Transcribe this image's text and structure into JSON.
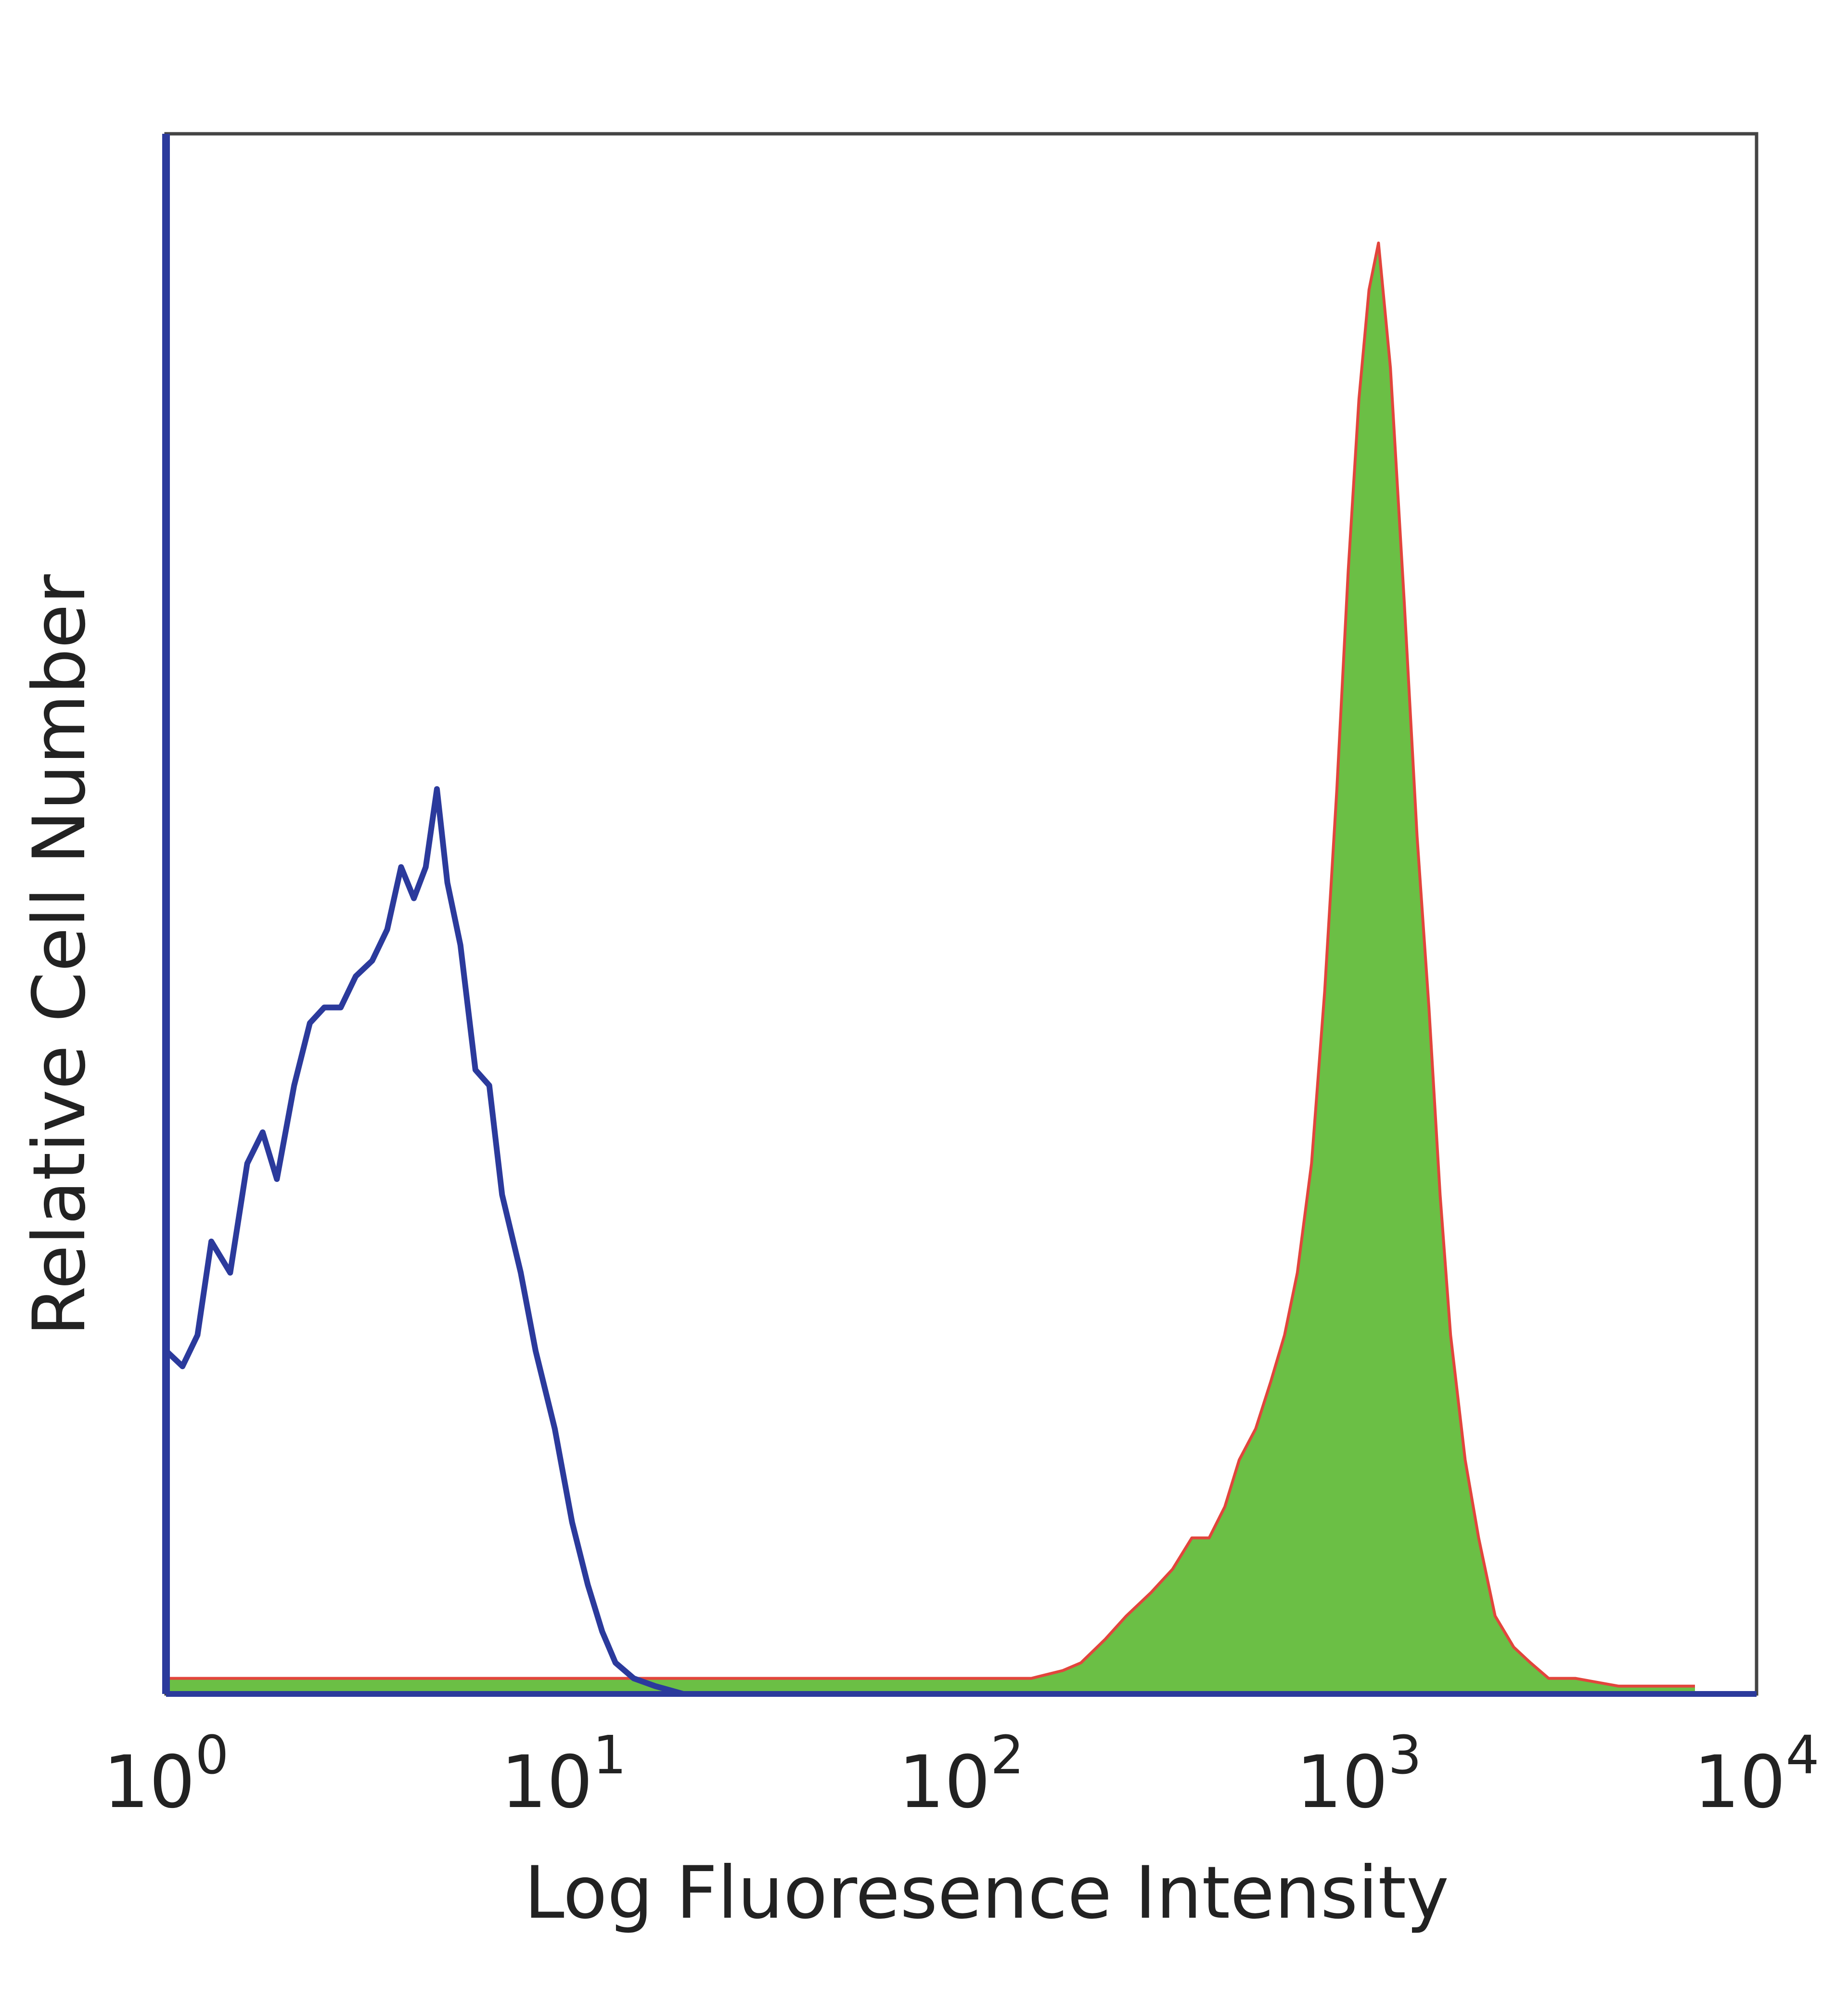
{
  "chart_data": {
    "type": "area",
    "xlabel": "Log Fluoresence Intensity",
    "ylabel": "Relative Cell Number",
    "x_scale": "log10",
    "xlim": [
      1,
      10000
    ],
    "ylim": [
      0,
      100
    ],
    "grid": false,
    "x_ticks": [
      {
        "value": 1,
        "base": "10",
        "exp": "0"
      },
      {
        "value": 10,
        "base": "10",
        "exp": "1"
      },
      {
        "value": 100,
        "base": "10",
        "exp": "2"
      },
      {
        "value": 1000,
        "base": "10",
        "exp": "3"
      },
      {
        "value": 10000,
        "base": "10",
        "exp": "4"
      }
    ],
    "series": [
      {
        "style": "outline",
        "color": "#2b3a9c",
        "x": [
          1.0,
          1.1,
          1.2,
          1.3,
          1.45,
          1.6,
          1.75,
          1.9,
          2.1,
          2.3,
          2.5,
          2.75,
          3.0,
          3.3,
          3.6,
          3.9,
          4.2,
          4.5,
          4.8,
          5.1,
          5.5,
          6.0,
          6.5,
          7.0,
          7.8,
          8.5,
          9.5,
          10.5,
          11.5,
          12.5,
          13.5,
          15.0,
          17.0,
          20.0,
          25.0
        ],
        "y": [
          22,
          21,
          23,
          29,
          27,
          34,
          36,
          33,
          39,
          43,
          44,
          44,
          46,
          47,
          49,
          53,
          51,
          53,
          58,
          52,
          48,
          40,
          39,
          32,
          27,
          22,
          17,
          11,
          7,
          4,
          2,
          1,
          0.5,
          0,
          0
        ]
      },
      {
        "style": "fill",
        "color": "#6bbf45",
        "edge_color": "#e2453c",
        "x": [
          1.0,
          2.0,
          5.0,
          10.0,
          20.0,
          50.0,
          100.0,
          150.0,
          180.0,
          200.0,
          230.0,
          260.0,
          300.0,
          340.0,
          380.0,
          420.0,
          460.0,
          500.0,
          550.0,
          600.0,
          650.0,
          700.0,
          760.0,
          820.0,
          880.0,
          940.0,
          1000.0,
          1060.0,
          1120.0,
          1200.0,
          1300.0,
          1400.0,
          1500.0,
          1600.0,
          1700.0,
          1850.0,
          2000.0,
          2200.0,
          2450.0,
          2700.0,
          3000.0,
          3500.0,
          4500.0,
          7000.0
        ],
        "y": [
          1,
          1,
          1,
          1,
          1,
          1,
          1,
          1,
          1.5,
          2,
          3.5,
          5,
          6.5,
          8,
          10,
          10,
          12,
          15,
          17,
          20,
          23,
          27,
          34,
          45,
          58,
          72,
          83,
          90,
          93,
          85,
          70,
          55,
          44,
          32,
          23,
          15,
          10,
          5,
          3,
          2,
          1,
          1,
          0.5,
          0.5
        ]
      }
    ]
  }
}
